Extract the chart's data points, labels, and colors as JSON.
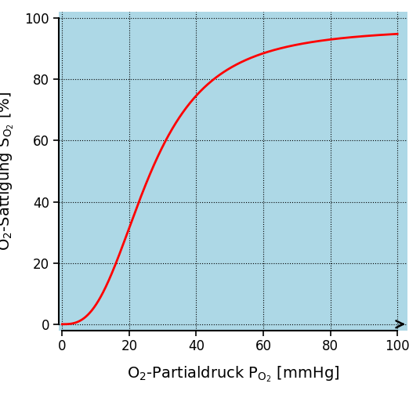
{
  "xlim": [
    0,
    100
  ],
  "ylim": [
    0,
    100
  ],
  "xticks": [
    0,
    20,
    40,
    60,
    80,
    100
  ],
  "yticks": [
    0,
    20,
    40,
    60,
    80,
    100
  ],
  "background_color": "#ADD8E6",
  "figure_color": "#ffffff",
  "curve_color": "#FF0000",
  "curve_linewidth": 2.0,
  "grid_color": "#000000",
  "grid_linestyle": ":",
  "grid_linewidth": 0.8,
  "hill_n": 2.8,
  "hill_p50": 26,
  "y_max": 97,
  "tick_labelsize": 12,
  "xlabel_text": "O$_2$-Partialdruck P$_{\\/O_2}$ [mmHg]",
  "ylabel_text": "O$_2$-Sättigung S$_{\\/O_2}$ [%]",
  "xlabel_fontsize": 14,
  "ylabel_fontsize": 14,
  "spine_linewidth": 1.5,
  "arrow_color": "#000000"
}
